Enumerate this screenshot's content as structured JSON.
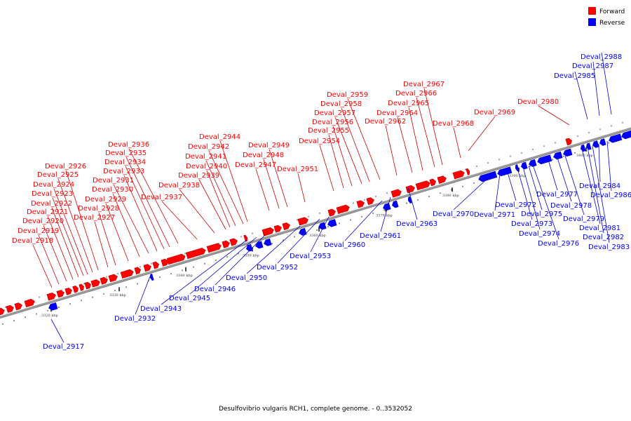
{
  "caption": "Desulfovibrio vulgaris RCH1, complete genome. - 0..3532052",
  "legend": [
    {
      "label": "Forward",
      "color": "#ff0000"
    },
    {
      "label": "Reverse",
      "color": "#0000ff"
    }
  ],
  "colors": {
    "forward": "#ff0000",
    "reverse": "#0000ff",
    "backbone": "#9a9a9a",
    "forward_leader": "#cc0000",
    "reverse_leader": "#0000cc"
  },
  "scale_labels": [
    "3320 kbp",
    "3330 kbp",
    "3340 kbp",
    "3350 kbp",
    "3360 kbp",
    "3370 kbp",
    "3380 kbp",
    "3390 kbp",
    "3400 kbp"
  ],
  "forward_genes": [
    "Deval_2918",
    "Deval_2919",
    "Deval_2920",
    "Deval_2921",
    "Deval_2922",
    "Deval_2923",
    "Deval_2924",
    "Deval_2925",
    "Deval_2926",
    "Deval_2927",
    "Deval_2928",
    "Deval_2929",
    "Deval_2930",
    "Deval_2931",
    "Deval_2933",
    "Deval_2934",
    "Deval_2935",
    "Deval_2936",
    "Deval_2937",
    "Deval_2938",
    "Deval_2939",
    "Deval_2940",
    "Deval_2941",
    "Deval_2942",
    "Deval_2944",
    "Deval_2947",
    "Deval_2948",
    "Deval_2949",
    "Deval_2951",
    "Deval_2954",
    "Deval_2955",
    "Deval_2956",
    "Deval_2957",
    "Deval_2958",
    "Deval_2959",
    "Deval_2962",
    "Deval_2964",
    "Deval_2965",
    "Deval_2966",
    "Deval_2967",
    "Deval_2968",
    "Deval_2969",
    "Deval_2980"
  ],
  "reverse_genes": [
    "Deval_2917",
    "Deval_2932",
    "Deval_2943",
    "Deval_2945",
    "Deval_2946",
    "Deval_2950",
    "Deval_2952",
    "Deval_2953",
    "Deval_2960",
    "Deval_2961",
    "Deval_2963",
    "Deval_2970",
    "Deval_2971",
    "Deval_2972",
    "Deval_2973",
    "Deval_2974",
    "Deval_2975",
    "Deval_2976",
    "Deval_2977",
    "Deval_2978",
    "Deval_2979",
    "Deval_2981",
    "Deval_2982",
    "Deval_2983",
    "Deval_2984",
    "Deval_2985",
    "Deval_2986",
    "Deval_2987",
    "Deval_2988"
  ]
}
